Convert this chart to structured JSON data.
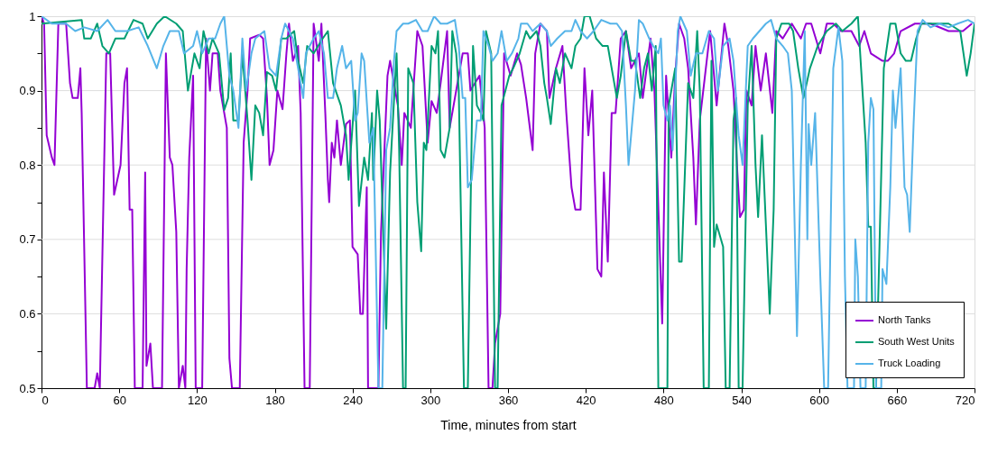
{
  "chart_data": {
    "type": "line",
    "xlabel": "Time, minutes from start",
    "xlim": [
      0,
      720
    ],
    "xticks": [
      0,
      60,
      120,
      180,
      240,
      300,
      360,
      420,
      480,
      540,
      600,
      660,
      720
    ],
    "ylim": [
      0.5,
      1
    ],
    "yticks": [
      0.5,
      {
        "value": 0.55,
        "label": null
      },
      0.6,
      {
        "value": 0.65,
        "label": null
      },
      0.7,
      {
        "value": 0.75,
        "label": null
      },
      0.8,
      {
        "value": 0.85,
        "label": null
      },
      0.9,
      {
        "value": 0.95,
        "label": null
      },
      1
    ],
    "grid": "y",
    "legend": "bottom right",
    "marker": "none",
    "line_style": "solid",
    "series": [
      {
        "name": "North Tanks",
        "color": "#9400d3",
        "x": [
          0,
          2,
          4,
          8,
          10,
          13,
          19,
          22,
          24,
          28,
          30,
          31,
          35,
          41,
          43,
          45,
          50,
          53,
          56,
          61,
          64,
          66,
          68,
          70,
          72,
          78,
          80,
          81,
          84,
          86,
          93,
          96,
          99,
          101,
          104,
          106,
          109,
          111,
          112,
          114,
          117,
          119,
          124,
          127,
          130,
          132,
          136,
          138,
          141,
          143,
          145,
          147,
          153,
          156,
          159,
          161,
          168,
          171,
          174,
          176,
          179,
          182,
          186,
          189,
          191,
          194,
          198,
          200,
          203,
          207,
          210,
          214,
          216,
          219,
          221,
          222,
          224,
          226,
          228,
          231,
          235,
          238,
          240,
          244,
          246,
          248,
          251,
          252,
          260,
          262,
          267,
          269,
          275,
          278,
          280,
          285,
          290,
          294,
          298,
          301,
          305,
          308,
          313,
          315,
          320,
          325,
          329,
          331,
          338,
          342,
          345,
          348,
          350,
          354,
          357,
          362,
          367,
          370,
          374,
          379,
          381,
          385,
          390,
          392,
          397,
          402,
          405,
          409,
          412,
          416,
          419,
          422,
          425,
          429,
          432,
          434,
          437,
          440,
          443,
          447,
          451,
          455,
          461,
          464,
          470,
          473,
          479,
          482,
          486,
          489,
          492,
          496,
          499,
          503,
          505,
          508,
          512,
          516,
          521,
          527,
          530,
          534,
          537,
          539,
          542,
          544,
          548,
          551,
          555,
          559,
          564,
          567,
          572,
          579,
          586,
          590,
          594,
          601,
          606,
          611,
          617,
          625,
          631,
          635,
          640,
          649,
          653,
          658,
          663,
          674,
          686,
          700,
          711,
          718
        ],
        "values": [
          1.0,
          0.99,
          0.84,
          0.81,
          0.8,
          0.99,
          0.99,
          0.91,
          0.89,
          0.89,
          0.93,
          0.87,
          0.5,
          0.5,
          0.52,
          0.5,
          0.95,
          0.95,
          0.76,
          0.8,
          0.91,
          0.93,
          0.74,
          0.74,
          0.5,
          0.5,
          0.79,
          0.53,
          0.56,
          0.5,
          0.5,
          0.95,
          0.81,
          0.8,
          0.71,
          0.5,
          0.53,
          0.5,
          0.66,
          0.81,
          0.92,
          0.5,
          0.5,
          0.97,
          0.9,
          0.95,
          0.95,
          0.9,
          0.87,
          0.85,
          0.54,
          0.5,
          0.5,
          0.83,
          0.9,
          0.97,
          0.975,
          0.97,
          0.89,
          0.8,
          0.82,
          0.9,
          0.875,
          0.95,
          0.99,
          0.94,
          0.96,
          0.87,
          0.5,
          0.5,
          0.99,
          0.94,
          0.99,
          0.87,
          0.78,
          0.75,
          0.83,
          0.81,
          0.86,
          0.8,
          0.855,
          0.86,
          0.69,
          0.68,
          0.6,
          0.6,
          0.77,
          0.5,
          0.5,
          0.71,
          0.92,
          0.94,
          0.88,
          0.8,
          0.87,
          0.85,
          0.98,
          0.96,
          0.83,
          0.886,
          0.87,
          0.91,
          0.98,
          0.85,
          0.9,
          0.95,
          0.95,
          0.9,
          0.92,
          0.85,
          0.5,
          0.5,
          0.56,
          0.6,
          0.95,
          0.92,
          0.95,
          0.935,
          0.89,
          0.82,
          0.95,
          0.99,
          0.98,
          0.89,
          0.93,
          0.96,
          0.87,
          0.77,
          0.74,
          0.74,
          0.93,
          0.84,
          0.9,
          0.66,
          0.65,
          0.79,
          0.67,
          0.87,
          0.87,
          0.97,
          0.98,
          0.93,
          0.95,
          0.89,
          0.97,
          0.9,
          0.587,
          0.92,
          0.81,
          0.92,
          0.99,
          0.97,
          0.93,
          0.81,
          0.72,
          0.86,
          0.92,
          0.98,
          0.88,
          0.99,
          0.96,
          0.9,
          0.79,
          0.73,
          0.74,
          0.9,
          0.88,
          0.96,
          0.9,
          0.95,
          0.87,
          0.98,
          0.97,
          0.99,
          0.97,
          0.99,
          0.99,
          0.95,
          0.99,
          0.99,
          0.98,
          0.98,
          0.96,
          0.98,
          0.95,
          0.94,
          0.94,
          0.95,
          0.98,
          0.99,
          0.99,
          0.98,
          0.98,
          0.99
        ]
      },
      {
        "name": "South West Units",
        "color": "#009e73",
        "x": [
          0,
          31,
          33,
          38,
          43,
          47,
          52,
          57,
          64,
          71,
          78,
          82,
          89,
          95,
          104,
          109,
          113,
          118,
          122,
          125,
          129,
          132,
          137,
          141,
          144,
          146,
          148,
          152,
          155,
          159,
          162,
          165,
          168,
          171,
          174,
          178,
          181,
          185,
          189,
          195,
          198,
          202,
          205,
          210,
          217,
          221,
          225,
          231,
          235,
          237,
          242,
          245,
          249,
          252,
          255,
          256,
          259,
          261,
          266,
          269,
          274,
          276,
          279,
          281,
          283,
          287,
          290,
          293,
          295,
          297,
          301,
          304,
          306,
          308,
          311,
          315,
          317,
          320,
          322,
          326,
          329,
          333,
          336,
          339,
          341,
          343,
          347,
          350,
          352,
          355,
          361,
          364,
          369,
          374,
          377,
          382,
          385,
          388,
          390,
          393,
          397,
          400,
          404,
          409,
          412,
          416,
          419,
          423,
          428,
          433,
          437,
          441,
          444,
          447,
          451,
          455,
          458,
          462,
          465,
          468,
          471,
          474,
          476,
          483,
          484,
          489,
          492,
          494,
          499,
          503,
          506,
          508,
          511,
          515,
          517,
          519,
          521,
          526,
          528,
          531,
          534,
          536,
          538,
          541,
          545,
          548,
          551,
          553,
          556,
          559,
          562,
          565,
          567,
          571,
          577,
          580,
          584,
          588,
          593,
          599,
          606,
          613,
          618,
          625,
          630,
          636,
          638,
          640,
          642,
          644,
          650,
          655,
          659,
          663,
          667,
          671,
          675,
          679,
          688,
          700,
          709,
          714,
          717,
          720
        ],
        "values": [
          0.99,
          0.995,
          0.97,
          0.97,
          0.99,
          0.96,
          0.95,
          0.97,
          0.97,
          0.995,
          0.99,
          0.97,
          0.99,
          1.0,
          0.99,
          0.98,
          0.9,
          0.95,
          0.93,
          0.98,
          0.95,
          0.97,
          0.95,
          0.874,
          0.89,
          0.95,
          0.86,
          0.86,
          0.95,
          0.86,
          0.78,
          0.88,
          0.87,
          0.84,
          0.925,
          0.92,
          0.9,
          0.97,
          0.97,
          0.98,
          0.94,
          0.91,
          0.96,
          0.95,
          0.97,
          0.98,
          0.91,
          0.88,
          0.84,
          0.78,
          0.9,
          0.745,
          0.81,
          0.78,
          0.87,
          0.78,
          0.9,
          0.86,
          0.58,
          0.79,
          0.95,
          0.82,
          0.5,
          0.5,
          0.93,
          0.91,
          0.75,
          0.684,
          0.83,
          0.82,
          0.96,
          0.95,
          0.98,
          0.82,
          0.81,
          0.85,
          0.98,
          0.95,
          0.9,
          0.5,
          0.5,
          0.96,
          0.88,
          0.87,
          0.86,
          0.98,
          0.95,
          0.5,
          0.5,
          0.88,
          0.92,
          0.93,
          0.95,
          0.98,
          0.97,
          0.98,
          0.96,
          0.91,
          0.89,
          0.855,
          0.93,
          0.91,
          0.95,
          0.93,
          0.96,
          0.97,
          1.0,
          1.0,
          0.97,
          0.96,
          0.96,
          0.92,
          0.89,
          0.92,
          0.98,
          0.94,
          0.94,
          0.89,
          0.93,
          0.95,
          0.9,
          0.96,
          0.5,
          0.5,
          0.88,
          0.93,
          0.67,
          0.67,
          0.91,
          0.89,
          0.98,
          0.9,
          0.5,
          0.5,
          0.94,
          0.69,
          0.72,
          0.69,
          0.5,
          0.5,
          0.86,
          0.89,
          0.5,
          0.5,
          0.88,
          0.96,
          0.8,
          0.73,
          0.84,
          0.72,
          0.6,
          0.74,
          0.97,
          0.99,
          0.99,
          0.98,
          0.93,
          0.89,
          0.93,
          0.96,
          0.98,
          0.99,
          0.98,
          0.99,
          1.0,
          0.83,
          0.717,
          0.717,
          0.5,
          0.5,
          0.93,
          0.99,
          0.99,
          0.95,
          0.94,
          0.94,
          0.97,
          0.99,
          0.99,
          0.99,
          0.98,
          0.92,
          0.95,
          0.99
        ]
      },
      {
        "name": "Truck Loading",
        "color": "#56b4e9",
        "x": [
          0,
          8,
          19,
          26,
          33,
          43,
          51,
          57,
          66,
          75,
          82,
          89,
          94,
          99,
          106,
          110,
          117,
          120,
          124,
          129,
          134,
          138,
          141,
          145,
          148,
          152,
          155,
          158,
          162,
          165,
          172,
          176,
          181,
          185,
          188,
          194,
          198,
          202,
          204,
          210,
          214,
          218,
          221,
          225,
          228,
          232,
          235,
          239,
          242,
          244,
          247,
          249,
          253,
          256,
          260,
          263,
          266,
          269,
          272,
          274,
          279,
          283,
          289,
          294,
          298,
          303,
          308,
          313,
          319,
          322,
          325,
          327,
          329,
          332,
          336,
          339,
          341,
          345,
          348,
          352,
          355,
          359,
          363,
          368,
          370,
          375,
          379,
          385,
          390,
          393,
          398,
          404,
          409,
          412,
          416,
          421,
          426,
          432,
          439,
          444,
          448,
          451,
          453,
          456,
          458,
          461,
          464,
          469,
          472,
          476,
          478,
          480,
          483,
          485,
          487,
          491,
          493,
          498,
          501,
          505,
          510,
          515,
          519,
          522,
          526,
          531,
          534,
          538,
          541,
          545,
          549,
          554,
          559,
          563,
          567,
          572,
          576,
          579,
          583,
          586,
          589,
          591,
          592,
          594,
          597,
          601,
          604,
          607,
          611,
          615,
          618,
          620,
          622,
          627,
          628,
          630,
          632,
          636,
          638,
          640,
          642,
          644,
          648,
          649,
          652,
          655,
          657,
          659,
          663,
          666,
          668,
          670,
          673,
          676,
          680,
          686,
          693,
          700,
          707,
          715,
          720
        ],
        "values": [
          1.0,
          0.99,
          0.99,
          0.98,
          0.985,
          0.98,
          0.995,
          0.98,
          0.98,
          0.985,
          0.96,
          0.93,
          0.96,
          0.98,
          0.98,
          0.95,
          0.96,
          0.98,
          0.95,
          0.97,
          0.97,
          0.99,
          1.0,
          0.92,
          0.9,
          0.85,
          0.97,
          0.9,
          0.95,
          0.97,
          0.98,
          0.93,
          0.92,
          0.97,
          0.99,
          0.97,
          0.93,
          0.89,
          0.95,
          0.97,
          0.98,
          0.95,
          0.89,
          0.89,
          0.93,
          0.96,
          0.93,
          0.94,
          0.86,
          0.87,
          0.95,
          0.94,
          0.83,
          0.85,
          0.5,
          0.5,
          0.82,
          0.85,
          0.94,
          0.98,
          0.99,
          0.99,
          0.995,
          0.98,
          0.98,
          1.0,
          0.99,
          0.99,
          0.995,
          0.96,
          0.89,
          0.89,
          0.77,
          0.78,
          0.86,
          0.86,
          0.98,
          0.96,
          0.94,
          0.95,
          0.98,
          0.94,
          0.95,
          0.97,
          0.99,
          0.99,
          0.98,
          0.99,
          0.98,
          0.96,
          0.97,
          0.98,
          0.98,
          0.995,
          0.98,
          0.97,
          0.98,
          0.995,
          0.99,
          0.99,
          0.98,
          0.88,
          0.8,
          0.86,
          0.9,
          0.995,
          0.99,
          0.97,
          0.96,
          0.95,
          0.97,
          0.88,
          0.86,
          0.88,
          0.82,
          0.98,
          1.0,
          0.98,
          0.92,
          0.95,
          0.95,
          0.98,
          0.97,
          0.9,
          0.96,
          0.97,
          0.94,
          0.84,
          0.8,
          0.96,
          0.97,
          0.98,
          0.99,
          0.995,
          0.97,
          0.96,
          0.95,
          0.9,
          0.57,
          0.8,
          0.98,
          0.7,
          0.855,
          0.8,
          0.87,
          0.65,
          0.5,
          0.5,
          0.93,
          0.985,
          0.94,
          0.65,
          0.5,
          0.5,
          0.7,
          0.65,
          0.5,
          0.5,
          0.83,
          0.89,
          0.875,
          0.5,
          0.5,
          0.66,
          0.64,
          0.77,
          0.9,
          0.85,
          0.93,
          0.77,
          0.76,
          0.71,
          0.855,
          0.98,
          0.995,
          0.985,
          0.99,
          0.985,
          0.99,
          0.995,
          0.99
        ]
      }
    ]
  }
}
